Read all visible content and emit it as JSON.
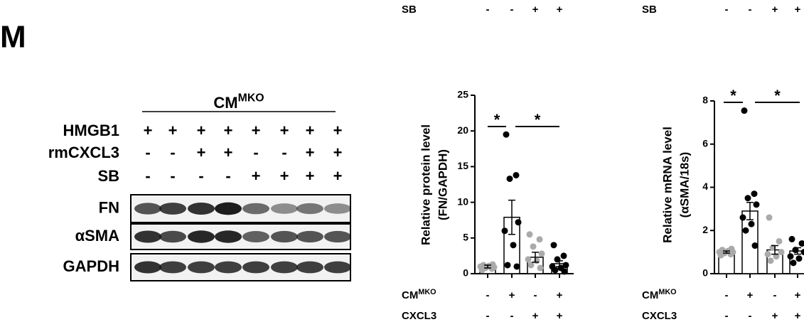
{
  "panel_label": "M",
  "blot": {
    "header": {
      "base": "CM",
      "sup": "MKO"
    },
    "conditions": [
      {
        "name": "HMGB1",
        "signs": [
          "+",
          "+",
          "+",
          "+",
          "+",
          "+",
          "+",
          "+"
        ]
      },
      {
        "name": "rmCXCL3",
        "signs": [
          "-",
          "-",
          "+",
          "+",
          "-",
          "-",
          "+",
          "+"
        ]
      },
      {
        "name": "SB",
        "signs": [
          "-",
          "-",
          "-",
          "-",
          "+",
          "+",
          "+",
          "+"
        ]
      }
    ],
    "rows": [
      "FN",
      "αSMA",
      "GAPDH"
    ]
  },
  "chart_data": [
    {
      "type": "bar",
      "ylabel": [
        "Relative protein level",
        "(FN/GAPDH)"
      ],
      "ylim": [
        0,
        25
      ],
      "yticks": [
        0,
        5,
        10,
        15,
        20,
        25
      ],
      "values": [
        1.0,
        7.9,
        2.3,
        1.4
      ],
      "errors": [
        0.2,
        2.4,
        0.7,
        0.4
      ],
      "points": [
        [
          0.5,
          0.7,
          0.8,
          0.9,
          1.0,
          1.1,
          1.2,
          1.3
        ],
        [
          19.5,
          13.8,
          13.3,
          7.2,
          6.0,
          4.0,
          1.2,
          1.0
        ],
        [
          5.5,
          4.8,
          3.8,
          2.8,
          2.0,
          1.8,
          1.2,
          0.8
        ],
        [
          4.0,
          2.5,
          2.0,
          1.2,
          1.0,
          0.8,
          0.5,
          0.3
        ]
      ],
      "point_colors": [
        "#aaaaaa",
        "#000000",
        "#aaaaaa",
        "#000000"
      ],
      "annotations": [
        "*",
        "*"
      ],
      "top_conditions": [
        {
          "name": "SB",
          "signs": [
            "-",
            "-",
            "+",
            "+"
          ]
        }
      ],
      "conditions": [
        {
          "name": {
            "base": "CM",
            "sup": "MKO"
          },
          "signs": [
            "-",
            "+",
            "-",
            "+"
          ]
        },
        {
          "name": "CXCL3",
          "signs": [
            "-",
            "-",
            "+",
            "+"
          ]
        }
      ]
    },
    {
      "type": "bar",
      "ylabel": [
        "Relative mRNA level",
        "(αSMA/18s)"
      ],
      "ylim": [
        0,
        8
      ],
      "yticks": [
        0,
        2,
        4,
        6,
        8
      ],
      "values": [
        1.0,
        2.9,
        1.1,
        1.05
      ],
      "errors": [
        0.05,
        0.4,
        0.2,
        0.15
      ],
      "points": [
        [
          0.85,
          0.9,
          0.95,
          1.0,
          1.0,
          1.05,
          1.1,
          1.15
        ],
        [
          7.55,
          3.7,
          3.5,
          3.2,
          2.6,
          2.3,
          2.0,
          1.3
        ],
        [
          2.6,
          1.5,
          1.2,
          1.0,
          0.9,
          0.8,
          0.6
        ],
        [
          1.6,
          1.4,
          1.1,
          1.0,
          0.8,
          0.7,
          0.5
        ]
      ],
      "point_colors": [
        "#aaaaaa",
        "#000000",
        "#aaaaaa",
        "#000000"
      ],
      "annotations": [
        "*",
        "*"
      ],
      "top_conditions": [
        {
          "name": "SB",
          "signs": [
            "-",
            "-",
            "+",
            "+"
          ]
        }
      ],
      "conditions": [
        {
          "name": {
            "base": "CM",
            "sup": "MKO"
          },
          "signs": [
            "-",
            "+",
            "-",
            "+"
          ]
        },
        {
          "name": "CXCL3",
          "signs": [
            "-",
            "-",
            "+",
            "+"
          ]
        }
      ]
    }
  ]
}
